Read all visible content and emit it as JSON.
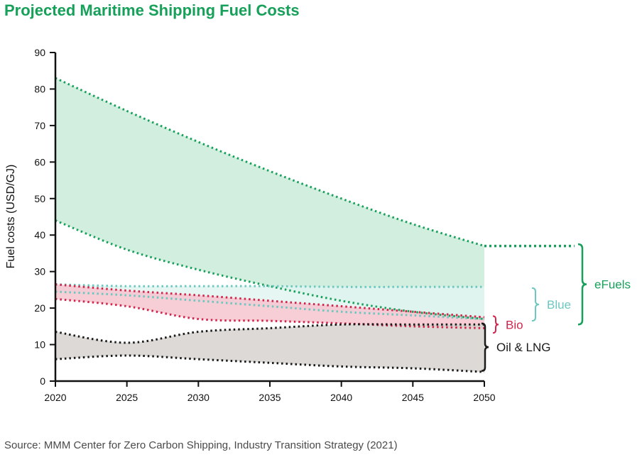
{
  "title": "Projected Maritime Shipping Fuel Costs",
  "source": "Source: MMM Center for Zero Carbon Shipping, Industry Transition Strategy (2021)",
  "chart_data": {
    "type": "area",
    "title": "Projected Maritime Shipping Fuel Costs",
    "xlabel": "",
    "ylabel": "Fuel costs (USD/GJ)",
    "xlim": [
      2020,
      2050
    ],
    "ylim": [
      0,
      90
    ],
    "x_ticks": [
      2020,
      2025,
      2030,
      2035,
      2040,
      2045,
      2050
    ],
    "y_ticks": [
      0,
      10,
      20,
      30,
      40,
      50,
      60,
      70,
      80,
      90
    ],
    "grid": false,
    "legend": "bracket labels at right",
    "series": [
      {
        "name": "eFuels",
        "color": "#17a05a",
        "fill": "#c9ebd9",
        "x": [
          2020,
          2025,
          2030,
          2035,
          2040,
          2045,
          2050
        ],
        "low": [
          44,
          36,
          30.5,
          26,
          22,
          19,
          17
        ],
        "high": [
          83,
          74,
          65.5,
          57.5,
          50,
          43,
          37
        ],
        "extension": {
          "x_end": 2056.3,
          "value": 37
        }
      },
      {
        "name": "Blue",
        "color": "#6dc8c0",
        "fill": "#e2f4f1",
        "x": [
          2020,
          2025,
          2030,
          2035,
          2040,
          2045,
          2050
        ],
        "low": [
          24.5,
          23.5,
          22,
          20.5,
          19,
          18,
          17
        ],
        "high": [
          26.5,
          26,
          26,
          26,
          25.8,
          25.8,
          25.8
        ]
      },
      {
        "name": "Bio",
        "color": "#d2264d",
        "fill": "#f6c4cf",
        "x": [
          2020,
          2025,
          2030,
          2035,
          2040,
          2045,
          2050
        ],
        "low": [
          22.5,
          20.5,
          17,
          16.5,
          15.8,
          15,
          14.5
        ],
        "high": [
          26.5,
          24.8,
          23.5,
          22,
          20.5,
          19,
          17.5
        ]
      },
      {
        "name": "Oil & LNG",
        "color": "#1a1a1a",
        "fill": "#d6d2cf",
        "x": [
          2020,
          2025,
          2030,
          2035,
          2040,
          2045,
          2050
        ],
        "low": [
          6,
          7,
          6,
          5,
          4,
          3.5,
          2.5
        ],
        "high": [
          13.5,
          10.5,
          13.5,
          14.5,
          15.5,
          15.5,
          15.5
        ]
      }
    ],
    "labels": [
      {
        "text": "eFuels",
        "color": "#17a05a"
      },
      {
        "text": "Blue",
        "color": "#6dc8c0"
      },
      {
        "text": "Bio",
        "color": "#d2264d"
      },
      {
        "text": "Oil & LNG",
        "color": "#1a1a1a"
      }
    ]
  }
}
